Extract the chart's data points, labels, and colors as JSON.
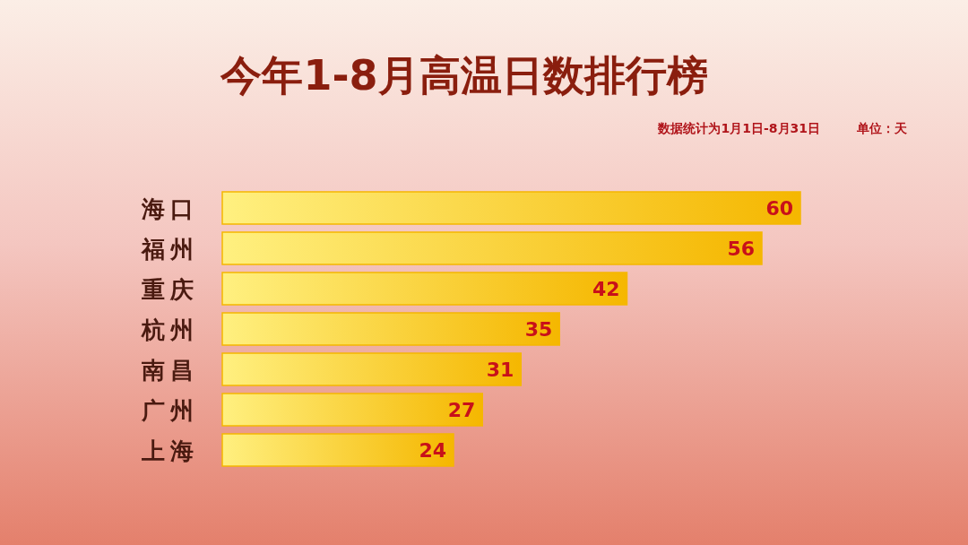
{
  "chart_data": {
    "type": "bar",
    "orientation": "horizontal",
    "title": "今年1-8月高温日数排行榜",
    "subtitle": "数据统计为1月1日-8月31日",
    "annotations": [
      "单位：天"
    ],
    "categories": [
      "海口",
      "福州",
      "重庆",
      "杭州",
      "南昌",
      "广州",
      "上海"
    ],
    "values": [
      60,
      56,
      42,
      35,
      31,
      27,
      24
    ],
    "color": "#f5b700",
    "data_labels": true
  }
}
